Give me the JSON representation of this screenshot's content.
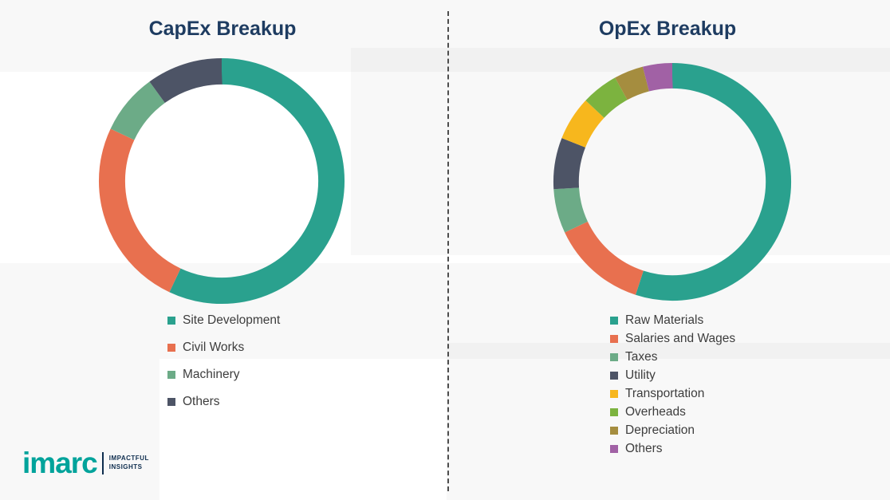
{
  "chart_data": [
    {
      "type": "pie",
      "donut": true,
      "title": "CapEx Breakup",
      "legend_position": "bottom",
      "labels": [
        "Site Development",
        "Civil Works",
        "Machinery",
        "Others"
      ],
      "values": [
        57,
        25,
        8,
        10
      ],
      "colors": [
        "#2aa18e",
        "#e8704f",
        "#6cab87",
        "#4d5466"
      ]
    },
    {
      "type": "pie",
      "donut": true,
      "title": "OpEx Breakup",
      "legend_position": "bottom",
      "labels": [
        "Raw Materials",
        "Salaries and Wages",
        "Taxes",
        "Utility",
        "Transportation",
        "Overheads",
        "Depreciation",
        "Others"
      ],
      "values": [
        55,
        13,
        6,
        7,
        6,
        5,
        4,
        4
      ],
      "colors": [
        "#2aa18e",
        "#e8704f",
        "#6cab87",
        "#4d5466",
        "#f7b71d",
        "#7cb33f",
        "#a58d3f",
        "#a161a5"
      ]
    }
  ],
  "logo": {
    "brand": "imarc",
    "tagline_line1": "IMPACTFUL",
    "tagline_line2": "INSIGHTS",
    "brand_color": "#00a39b"
  }
}
